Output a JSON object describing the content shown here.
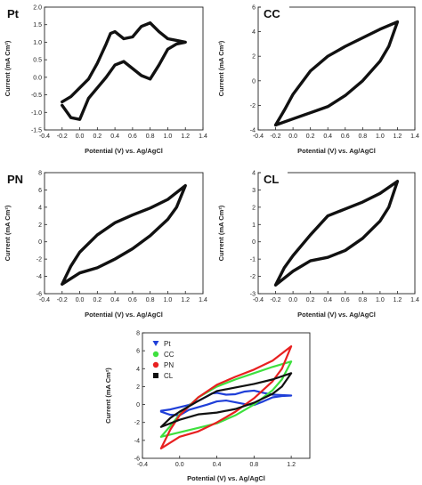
{
  "chart_data": [
    {
      "type": "line",
      "panel_label": "Pt",
      "xlabel": "Potential (V) vs. Ag/AgCl",
      "ylabel": "Current (mA Cm²)",
      "xlim": [
        -0.4,
        1.4
      ],
      "ylim": [
        -1.5,
        2.0
      ],
      "xticks": [
        "-0.4",
        "-0.2",
        "0.0",
        "0.2",
        "0.4",
        "0.6",
        "0.8",
        "1.0",
        "1.2",
        "1.4"
      ],
      "yticks": [
        "-1.5",
        "-1.0",
        "-0.5",
        "0.0",
        "0.5",
        "1.0",
        "1.5",
        "2.0"
      ],
      "series": [
        {
          "color": "#111111",
          "x": [
            -0.2,
            -0.1,
            0.0,
            0.1,
            0.2,
            0.3,
            0.35,
            0.4,
            0.5,
            0.6,
            0.7,
            0.8,
            0.9,
            1.0,
            1.1,
            1.2,
            1.1,
            1.0,
            0.9,
            0.8,
            0.7,
            0.6,
            0.5,
            0.4,
            0.3,
            0.2,
            0.1,
            0.0,
            -0.1,
            -0.2
          ],
          "y": [
            -0.7,
            -0.55,
            -0.3,
            -0.05,
            0.4,
            0.95,
            1.25,
            1.3,
            1.1,
            1.15,
            1.45,
            1.55,
            1.3,
            1.1,
            1.05,
            1.0,
            0.95,
            0.8,
            0.35,
            -0.05,
            0.05,
            0.25,
            0.45,
            0.35,
            0.0,
            -0.3,
            -0.6,
            -1.2,
            -1.15,
            -0.8
          ]
        }
      ]
    },
    {
      "type": "line",
      "panel_label": "CC",
      "xlabel": "Potential (V) vs. Ag/AgCl",
      "ylabel": "Current (mA Cm²)",
      "xlim": [
        -0.4,
        1.4
      ],
      "ylim": [
        -4,
        6
      ],
      "xticks": [
        "-0.4",
        "-0.2",
        "0.0",
        "0.2",
        "0.4",
        "0.6",
        "0.8",
        "1.0",
        "1.2",
        "1.4"
      ],
      "yticks": [
        "-4",
        "-2",
        "0",
        "2",
        "4",
        "6"
      ],
      "series": [
        {
          "color": "#111111",
          "x": [
            -0.2,
            -0.1,
            0.0,
            0.2,
            0.4,
            0.6,
            0.8,
            1.0,
            1.2,
            1.1,
            1.0,
            0.8,
            0.6,
            0.4,
            0.2,
            0.0,
            -0.2
          ],
          "y": [
            -3.6,
            -2.4,
            -1.1,
            0.8,
            2.0,
            2.8,
            3.5,
            4.2,
            4.8,
            2.8,
            1.6,
            0.0,
            -1.2,
            -2.1,
            -2.6,
            -3.1,
            -3.6
          ]
        }
      ]
    },
    {
      "type": "line",
      "panel_label": "PN",
      "xlabel": "Potential (V) vs. Ag/AgCl",
      "ylabel": "Current (mA Cm²)",
      "xlim": [
        -0.4,
        1.4
      ],
      "ylim": [
        -6,
        8
      ],
      "xticks": [
        "-0.4",
        "-0.2",
        "0.0",
        "0.2",
        "0.4",
        "0.6",
        "0.8",
        "1.0",
        "1.2",
        "1.4"
      ],
      "yticks": [
        "-6",
        "-4",
        "-2",
        "0",
        "2",
        "4",
        "6",
        "8"
      ],
      "series": [
        {
          "color": "#111111",
          "x": [
            -0.2,
            -0.1,
            0.0,
            0.2,
            0.4,
            0.6,
            0.8,
            1.0,
            1.2,
            1.1,
            1.0,
            0.8,
            0.6,
            0.4,
            0.2,
            0.0,
            -0.2
          ],
          "y": [
            -4.9,
            -2.8,
            -1.2,
            0.8,
            2.2,
            3.1,
            3.9,
            4.9,
            6.5,
            4.0,
            2.6,
            0.7,
            -0.8,
            -2.0,
            -3.0,
            -3.6,
            -4.9
          ]
        }
      ]
    },
    {
      "type": "line",
      "panel_label": "CL",
      "xlabel": "Potential (V) vs. Ag/AgCl",
      "ylabel": "Current (mA Cm²)",
      "xlim": [
        -0.4,
        1.4
      ],
      "ylim": [
        -3,
        4
      ],
      "xticks": [
        "-0.4",
        "-0.2",
        "0.0",
        "0.2",
        "0.4",
        "0.6",
        "0.8",
        "1.0",
        "1.2",
        "1.4"
      ],
      "yticks": [
        "-3",
        "-2",
        "-1",
        "0",
        "1",
        "2",
        "3",
        "4"
      ],
      "series": [
        {
          "color": "#111111",
          "x": [
            -0.2,
            -0.1,
            0.0,
            0.2,
            0.4,
            0.6,
            0.8,
            1.0,
            1.2,
            1.1,
            1.0,
            0.8,
            0.6,
            0.4,
            0.2,
            0.0,
            -0.2
          ],
          "y": [
            -2.5,
            -1.5,
            -0.8,
            0.4,
            1.5,
            1.9,
            2.3,
            2.8,
            3.5,
            2.0,
            1.2,
            0.2,
            -0.5,
            -0.9,
            -1.1,
            -1.7,
            -2.5
          ]
        }
      ]
    },
    {
      "type": "line",
      "xlabel": "Potential (V) vs. Ag/AgCl",
      "ylabel": "Current (mA Cm²)",
      "xlim": [
        -0.4,
        1.4
      ],
      "ylim": [
        -6,
        8
      ],
      "xticks": [
        "-0.4",
        "0.0",
        "0.4",
        "0.8",
        "1.2"
      ],
      "yticks": [
        "-6",
        "-4",
        "-2",
        "0",
        "2",
        "4",
        "6",
        "8"
      ],
      "legend_position": "top-left",
      "series": [
        {
          "name": "Pt",
          "color": "#1f3fd8",
          "marker": "triangle-down",
          "x": [
            -0.2,
            -0.1,
            0.0,
            0.1,
            0.2,
            0.3,
            0.35,
            0.4,
            0.5,
            0.6,
            0.7,
            0.8,
            0.9,
            1.0,
            1.1,
            1.2,
            1.1,
            1.0,
            0.9,
            0.8,
            0.7,
            0.6,
            0.5,
            0.4,
            0.3,
            0.2,
            0.1,
            0.0,
            -0.1,
            -0.2
          ],
          "y": [
            -0.7,
            -0.55,
            -0.3,
            -0.05,
            0.4,
            0.95,
            1.25,
            1.3,
            1.1,
            1.15,
            1.45,
            1.55,
            1.3,
            1.1,
            1.05,
            1.0,
            0.95,
            0.8,
            0.35,
            -0.05,
            0.05,
            0.25,
            0.45,
            0.35,
            0.0,
            -0.3,
            -0.6,
            -1.2,
            -1.15,
            -0.8
          ]
        },
        {
          "name": "CC",
          "color": "#3ee03e",
          "marker": "circle",
          "x": [
            -0.2,
            -0.1,
            0.0,
            0.2,
            0.4,
            0.6,
            0.8,
            1.0,
            1.2,
            1.1,
            1.0,
            0.8,
            0.6,
            0.4,
            0.2,
            0.0,
            -0.2
          ],
          "y": [
            -3.6,
            -2.4,
            -1.1,
            0.8,
            2.0,
            2.8,
            3.5,
            4.2,
            4.8,
            2.8,
            1.6,
            0.0,
            -1.2,
            -2.1,
            -2.6,
            -3.1,
            -3.6
          ]
        },
        {
          "name": "PN",
          "color": "#e82020",
          "marker": "circle",
          "x": [
            -0.2,
            -0.1,
            0.0,
            0.2,
            0.4,
            0.6,
            0.8,
            1.0,
            1.2,
            1.1,
            1.0,
            0.8,
            0.6,
            0.4,
            0.2,
            0.0,
            -0.2
          ],
          "y": [
            -4.9,
            -2.8,
            -1.2,
            0.8,
            2.2,
            3.1,
            3.9,
            4.9,
            6.5,
            4.0,
            2.6,
            0.7,
            -0.8,
            -2.0,
            -3.0,
            -3.6,
            -4.9
          ]
        },
        {
          "name": "CL",
          "color": "#111111",
          "marker": "square",
          "x": [
            -0.2,
            -0.1,
            0.0,
            0.2,
            0.4,
            0.6,
            0.8,
            1.0,
            1.2,
            1.1,
            1.0,
            0.8,
            0.6,
            0.4,
            0.2,
            0.0,
            -0.2
          ],
          "y": [
            -2.5,
            -1.5,
            -0.8,
            0.4,
            1.5,
            1.9,
            2.3,
            2.8,
            3.5,
            2.0,
            1.2,
            0.2,
            -0.5,
            -0.9,
            -1.1,
            -1.7,
            -2.5
          ]
        }
      ]
    }
  ]
}
